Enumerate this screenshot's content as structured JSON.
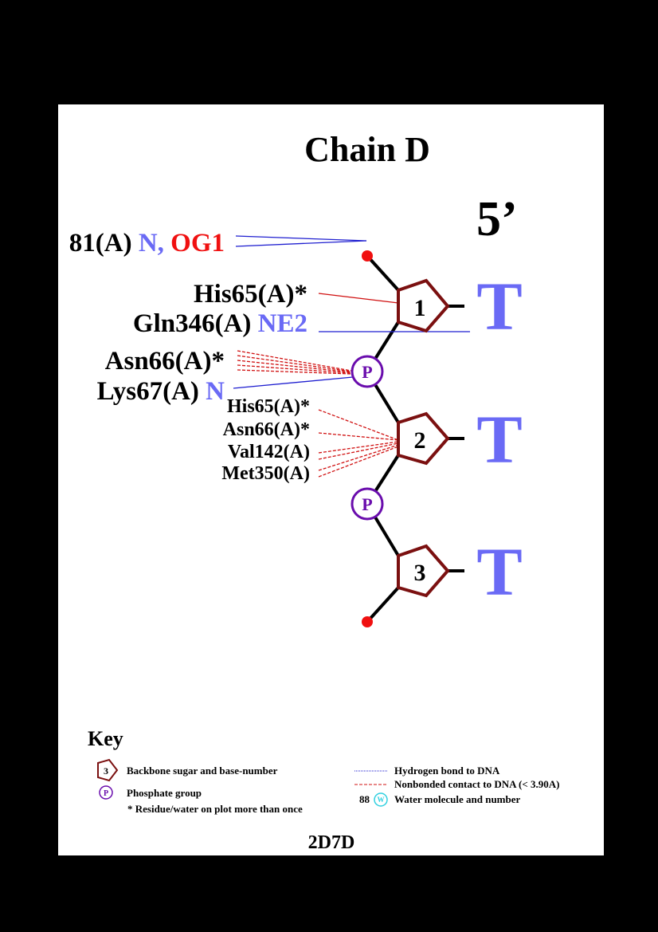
{
  "title": "Chain D",
  "end_label": "5’",
  "pdb_id": "2D7D",
  "colors": {
    "sugar": "#7b1010",
    "phosphate": "#6a0dad",
    "hbond": "#1f1fd0",
    "nonbond": "#d01010",
    "atom_blue": "#6a6af5",
    "atom_red": "#f01010",
    "base": "#6a6af5",
    "water": "#2fd0e0",
    "end_dot": "#f01010"
  },
  "nucleotides": [
    {
      "number": "1",
      "base": "T"
    },
    {
      "number": "2",
      "base": "T"
    },
    {
      "number": "3",
      "base": "T"
    }
  ],
  "phosphate_label": "P",
  "residues": {
    "r81": {
      "name": "81(A)",
      "atom1": "N,",
      "atom2": "OG1"
    },
    "his65_1": {
      "name": "His65(A)*"
    },
    "gln346": {
      "name": "Gln346(A)",
      "atom": "NE2"
    },
    "asn66_1": {
      "name": "Asn66(A)*"
    },
    "lys67": {
      "name": "Lys67(A)",
      "atom": "N"
    },
    "his65_2": {
      "name": "His65(A)*"
    },
    "asn66_2": {
      "name": "Asn66(A)*"
    },
    "val142": {
      "name": "Val142(A)"
    },
    "met350": {
      "name": "Met350(A)"
    }
  },
  "key": {
    "title": "Key",
    "sugar_number": "3",
    "sugar_text": "Backbone sugar and base-number",
    "phosphate_symbol": "P",
    "phosphate_text": "Phosphate group",
    "repeat_text": "* Residue/water on plot more than once",
    "hbond_text": "Hydrogen bond to DNA",
    "nonbond_text": "Nonbonded contact to DNA (< 3.90A)",
    "water_number": "88",
    "water_symbol": "W",
    "water_text": "Water molecule and number"
  }
}
